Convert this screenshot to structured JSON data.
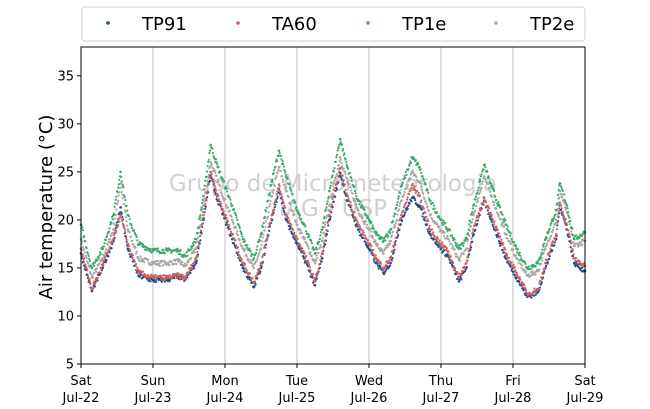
{
  "chart_data": {
    "type": "scatter",
    "ylabel": "Air temperature (°C)",
    "ylim": [
      5,
      38
    ],
    "yticks": [
      5,
      10,
      15,
      20,
      25,
      30,
      35
    ],
    "xlim": [
      0,
      7
    ],
    "xticks": [
      {
        "x": 0,
        "day": "Sat",
        "date": "Jul-22"
      },
      {
        "x": 1,
        "day": "Sun",
        "date": "Jul-23"
      },
      {
        "x": 2,
        "day": "Mon",
        "date": "Jul-24"
      },
      {
        "x": 3,
        "day": "Tue",
        "date": "Jul-25"
      },
      {
        "x": 4,
        "day": "Wed",
        "date": "Jul-26"
      },
      {
        "x": 5,
        "day": "Thu",
        "date": "Jul-27"
      },
      {
        "x": 6,
        "day": "Fri",
        "date": "Jul-28"
      },
      {
        "x": 7,
        "day": "Sat",
        "date": "Jul-29"
      }
    ],
    "grid": "vertical",
    "legend_position": "top",
    "watermark": [
      "Grupo de Micrometeorologia",
      "IAG - USP"
    ],
    "series": [
      {
        "name": "TP91",
        "color": "#1f4e8c",
        "points": [
          [
            0,
            16.5
          ],
          [
            0.15,
            12.6
          ],
          [
            0.3,
            15.0
          ],
          [
            0.45,
            17.8
          ],
          [
            0.55,
            21.3
          ],
          [
            0.65,
            17.0
          ],
          [
            0.8,
            14.2
          ],
          [
            1.0,
            13.7
          ],
          [
            1.2,
            13.8
          ],
          [
            1.35,
            14.1
          ],
          [
            1.45,
            13.8
          ],
          [
            1.6,
            15.5
          ],
          [
            1.7,
            20.0
          ],
          [
            1.8,
            24.6
          ],
          [
            1.9,
            22.0
          ],
          [
            2.1,
            18.0
          ],
          [
            2.25,
            15.0
          ],
          [
            2.4,
            13.0
          ],
          [
            2.5,
            15.0
          ],
          [
            2.65,
            20.0
          ],
          [
            2.75,
            23.2
          ],
          [
            2.85,
            20.0
          ],
          [
            3.0,
            17.5
          ],
          [
            3.1,
            16.0
          ],
          [
            3.25,
            13.2
          ],
          [
            3.35,
            16.0
          ],
          [
            3.45,
            20.0
          ],
          [
            3.6,
            24.9
          ],
          [
            3.7,
            22.0
          ],
          [
            3.85,
            19.0
          ],
          [
            4.0,
            17.0
          ],
          [
            4.1,
            15.5
          ],
          [
            4.2,
            14.5
          ],
          [
            4.3,
            15.5
          ],
          [
            4.45,
            20.0
          ],
          [
            4.6,
            22.3
          ],
          [
            4.7,
            21.5
          ],
          [
            4.85,
            18.5
          ],
          [
            5.0,
            17.0
          ],
          [
            5.1,
            16.2
          ],
          [
            5.25,
            13.6
          ],
          [
            5.35,
            15.0
          ],
          [
            5.45,
            18.5
          ],
          [
            5.6,
            22.0
          ],
          [
            5.7,
            20.0
          ],
          [
            5.9,
            16.0
          ],
          [
            6.05,
            14.0
          ],
          [
            6.2,
            12.0
          ],
          [
            6.35,
            12.5
          ],
          [
            6.45,
            15.0
          ],
          [
            6.6,
            18.0
          ],
          [
            6.65,
            21.5
          ],
          [
            6.75,
            19.0
          ],
          [
            6.85,
            15.5
          ],
          [
            7.0,
            14.7
          ]
        ]
      },
      {
        "name": "TA60",
        "color": "#d0605e",
        "points": [
          [
            0,
            17.0
          ],
          [
            0.15,
            12.8
          ],
          [
            0.3,
            15.3
          ],
          [
            0.45,
            18.0
          ],
          [
            0.55,
            20.5
          ],
          [
            0.65,
            17.5
          ],
          [
            0.8,
            14.5
          ],
          [
            1.0,
            14.0
          ],
          [
            1.2,
            14.0
          ],
          [
            1.35,
            14.2
          ],
          [
            1.45,
            14.0
          ],
          [
            1.6,
            16.0
          ],
          [
            1.7,
            20.5
          ],
          [
            1.8,
            25.0
          ],
          [
            1.9,
            22.5
          ],
          [
            2.1,
            18.5
          ],
          [
            2.25,
            15.5
          ],
          [
            2.4,
            13.5
          ],
          [
            2.5,
            15.5
          ],
          [
            2.65,
            20.5
          ],
          [
            2.75,
            23.7
          ],
          [
            2.85,
            20.5
          ],
          [
            3.0,
            18.0
          ],
          [
            3.1,
            16.5
          ],
          [
            3.25,
            13.6
          ],
          [
            3.35,
            16.5
          ],
          [
            3.45,
            20.5
          ],
          [
            3.6,
            25.4
          ],
          [
            3.7,
            22.5
          ],
          [
            3.85,
            19.5
          ],
          [
            4.0,
            17.5
          ],
          [
            4.1,
            16.0
          ],
          [
            4.2,
            15.0
          ],
          [
            4.3,
            16.0
          ],
          [
            4.45,
            20.5
          ],
          [
            4.6,
            23.6
          ],
          [
            4.7,
            22.5
          ],
          [
            4.85,
            19.0
          ],
          [
            5.0,
            17.5
          ],
          [
            5.1,
            16.7
          ],
          [
            5.25,
            14.0
          ],
          [
            5.35,
            15.5
          ],
          [
            5.45,
            19.0
          ],
          [
            5.6,
            22.3
          ],
          [
            5.7,
            20.5
          ],
          [
            5.9,
            16.5
          ],
          [
            6.05,
            14.5
          ],
          [
            6.2,
            12.3
          ],
          [
            6.35,
            12.8
          ],
          [
            6.45,
            15.5
          ],
          [
            6.6,
            18.5
          ],
          [
            6.65,
            21.8
          ],
          [
            6.75,
            19.5
          ],
          [
            6.85,
            16.0
          ],
          [
            7.0,
            15.2
          ]
        ]
      },
      {
        "name": "TP1e",
        "color": "#3aaa6a",
        "points": [
          [
            0,
            19.5
          ],
          [
            0.15,
            15.0
          ],
          [
            0.3,
            17.0
          ],
          [
            0.45,
            20.5
          ],
          [
            0.55,
            25.0
          ],
          [
            0.65,
            20.5
          ],
          [
            0.8,
            17.5
          ],
          [
            1.0,
            16.8
          ],
          [
            1.2,
            16.8
          ],
          [
            1.35,
            16.8
          ],
          [
            1.45,
            16.2
          ],
          [
            1.6,
            18.0
          ],
          [
            1.7,
            22.5
          ],
          [
            1.8,
            27.8
          ],
          [
            1.9,
            25.5
          ],
          [
            2.1,
            21.5
          ],
          [
            2.25,
            18.0
          ],
          [
            2.4,
            16.0
          ],
          [
            2.5,
            18.5
          ],
          [
            2.65,
            24.0
          ],
          [
            2.75,
            27.2
          ],
          [
            2.85,
            24.5
          ],
          [
            3.0,
            21.0
          ],
          [
            3.1,
            19.5
          ],
          [
            3.25,
            16.5
          ],
          [
            3.35,
            19.0
          ],
          [
            3.45,
            23.0
          ],
          [
            3.6,
            28.4
          ],
          [
            3.7,
            25.5
          ],
          [
            3.85,
            22.0
          ],
          [
            4.0,
            20.0
          ],
          [
            4.1,
            18.5
          ],
          [
            4.2,
            17.8
          ],
          [
            4.3,
            19.0
          ],
          [
            4.45,
            23.5
          ],
          [
            4.6,
            26.5
          ],
          [
            4.7,
            25.5
          ],
          [
            4.85,
            22.0
          ],
          [
            5.0,
            20.0
          ],
          [
            5.1,
            19.0
          ],
          [
            5.25,
            17.0
          ],
          [
            5.35,
            18.0
          ],
          [
            5.45,
            21.5
          ],
          [
            5.6,
            25.7
          ],
          [
            5.7,
            23.5
          ],
          [
            5.9,
            19.5
          ],
          [
            6.05,
            17.0
          ],
          [
            6.2,
            15.0
          ],
          [
            6.35,
            15.5
          ],
          [
            6.45,
            18.0
          ],
          [
            6.6,
            21.0
          ],
          [
            6.65,
            23.8
          ],
          [
            6.75,
            21.5
          ],
          [
            6.85,
            18.0
          ],
          [
            7.0,
            18.7
          ]
        ]
      },
      {
        "name": "TP2e",
        "color": "#a8a8a8",
        "points": [
          [
            0,
            18.0
          ],
          [
            0.15,
            14.0
          ],
          [
            0.3,
            16.0
          ],
          [
            0.45,
            19.0
          ],
          [
            0.55,
            23.8
          ],
          [
            0.65,
            19.0
          ],
          [
            0.8,
            16.0
          ],
          [
            1.0,
            15.5
          ],
          [
            1.2,
            15.5
          ],
          [
            1.35,
            15.7
          ],
          [
            1.45,
            15.2
          ],
          [
            1.6,
            17.0
          ],
          [
            1.7,
            21.5
          ],
          [
            1.8,
            26.0
          ],
          [
            1.9,
            24.0
          ],
          [
            2.1,
            20.0
          ],
          [
            2.25,
            17.0
          ],
          [
            2.4,
            15.0
          ],
          [
            2.5,
            17.0
          ],
          [
            2.65,
            22.5
          ],
          [
            2.75,
            25.5
          ],
          [
            2.85,
            23.0
          ],
          [
            3.0,
            19.5
          ],
          [
            3.1,
            18.0
          ],
          [
            3.25,
            15.5
          ],
          [
            3.35,
            17.8
          ],
          [
            3.45,
            21.5
          ],
          [
            3.6,
            26.5
          ],
          [
            3.7,
            24.0
          ],
          [
            3.85,
            21.0
          ],
          [
            4.0,
            19.0
          ],
          [
            4.1,
            17.5
          ],
          [
            4.2,
            16.5
          ],
          [
            4.3,
            17.8
          ],
          [
            4.45,
            22.0
          ],
          [
            4.6,
            25.0
          ],
          [
            4.7,
            24.0
          ],
          [
            4.85,
            20.5
          ],
          [
            5.0,
            18.8
          ],
          [
            5.1,
            18.0
          ],
          [
            5.25,
            15.8
          ],
          [
            5.35,
            17.0
          ],
          [
            5.45,
            20.5
          ],
          [
            5.6,
            24.5
          ],
          [
            5.7,
            22.5
          ],
          [
            5.9,
            18.5
          ],
          [
            6.05,
            16.0
          ],
          [
            6.2,
            14.2
          ],
          [
            6.35,
            14.7
          ],
          [
            6.45,
            17.0
          ],
          [
            6.6,
            20.0
          ],
          [
            6.65,
            23.0
          ],
          [
            6.75,
            20.8
          ],
          [
            6.85,
            17.3
          ],
          [
            7.0,
            17.8
          ]
        ]
      }
    ]
  }
}
